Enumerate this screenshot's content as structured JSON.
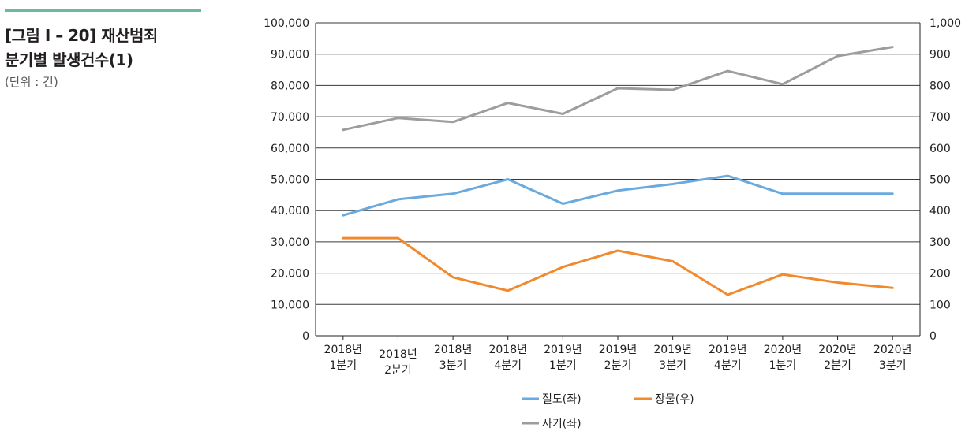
{
  "caption": {
    "title_line1": "[그림 Ⅰ – 20] 재산범죄",
    "title_line2": "분기별 발생건수(1)",
    "unit": "(단위 : 건)"
  },
  "chart_data": {
    "type": "line",
    "categories": [
      [
        "2018년",
        "1분기"
      ],
      [
        "2018년",
        "2분기"
      ],
      [
        "2018년",
        "3분기"
      ],
      [
        "2018년",
        "4분기"
      ],
      [
        "2019년",
        "1분기"
      ],
      [
        "2019년",
        "2분기"
      ],
      [
        "2019년",
        "3분기"
      ],
      [
        "2019년",
        "4분기"
      ],
      [
        "2020년",
        "1분기"
      ],
      [
        "2020년",
        "2분기"
      ],
      [
        "2020년",
        "3분기"
      ]
    ],
    "y_left": {
      "min": 0,
      "max": 100000,
      "step": 10000,
      "tick_labels": [
        "0",
        "10,000",
        "20,000",
        "30,000",
        "40,000",
        "50,000",
        "60,000",
        "70,000",
        "80,000",
        "90,000",
        "100,000"
      ]
    },
    "y_right": {
      "min": 0,
      "max": 1000,
      "step": 100,
      "tick_labels": [
        "0",
        "100",
        "200",
        "300",
        "400",
        "500",
        "600",
        "700",
        "800",
        "900",
        "1,000"
      ]
    },
    "grid": true,
    "series": [
      {
        "name": "절도(좌)",
        "axis": "left",
        "color": "#6aaade",
        "values": [
          38500,
          43600,
          45400,
          50000,
          42200,
          46400,
          48500,
          51100,
          45400,
          45400,
          45400
        ]
      },
      {
        "name": "장물(우)",
        "axis": "right",
        "color": "#f18a2d",
        "values": [
          312,
          312,
          187,
          144,
          220,
          272,
          238,
          131,
          196,
          170,
          153
        ]
      },
      {
        "name": "사기(좌)",
        "axis": "left",
        "color": "#9d9d9d",
        "values": [
          65800,
          69600,
          68300,
          74400,
          70900,
          79100,
          78600,
          84600,
          80400,
          89400,
          92300
        ]
      }
    ],
    "legend": {
      "placement": "bottom"
    }
  }
}
